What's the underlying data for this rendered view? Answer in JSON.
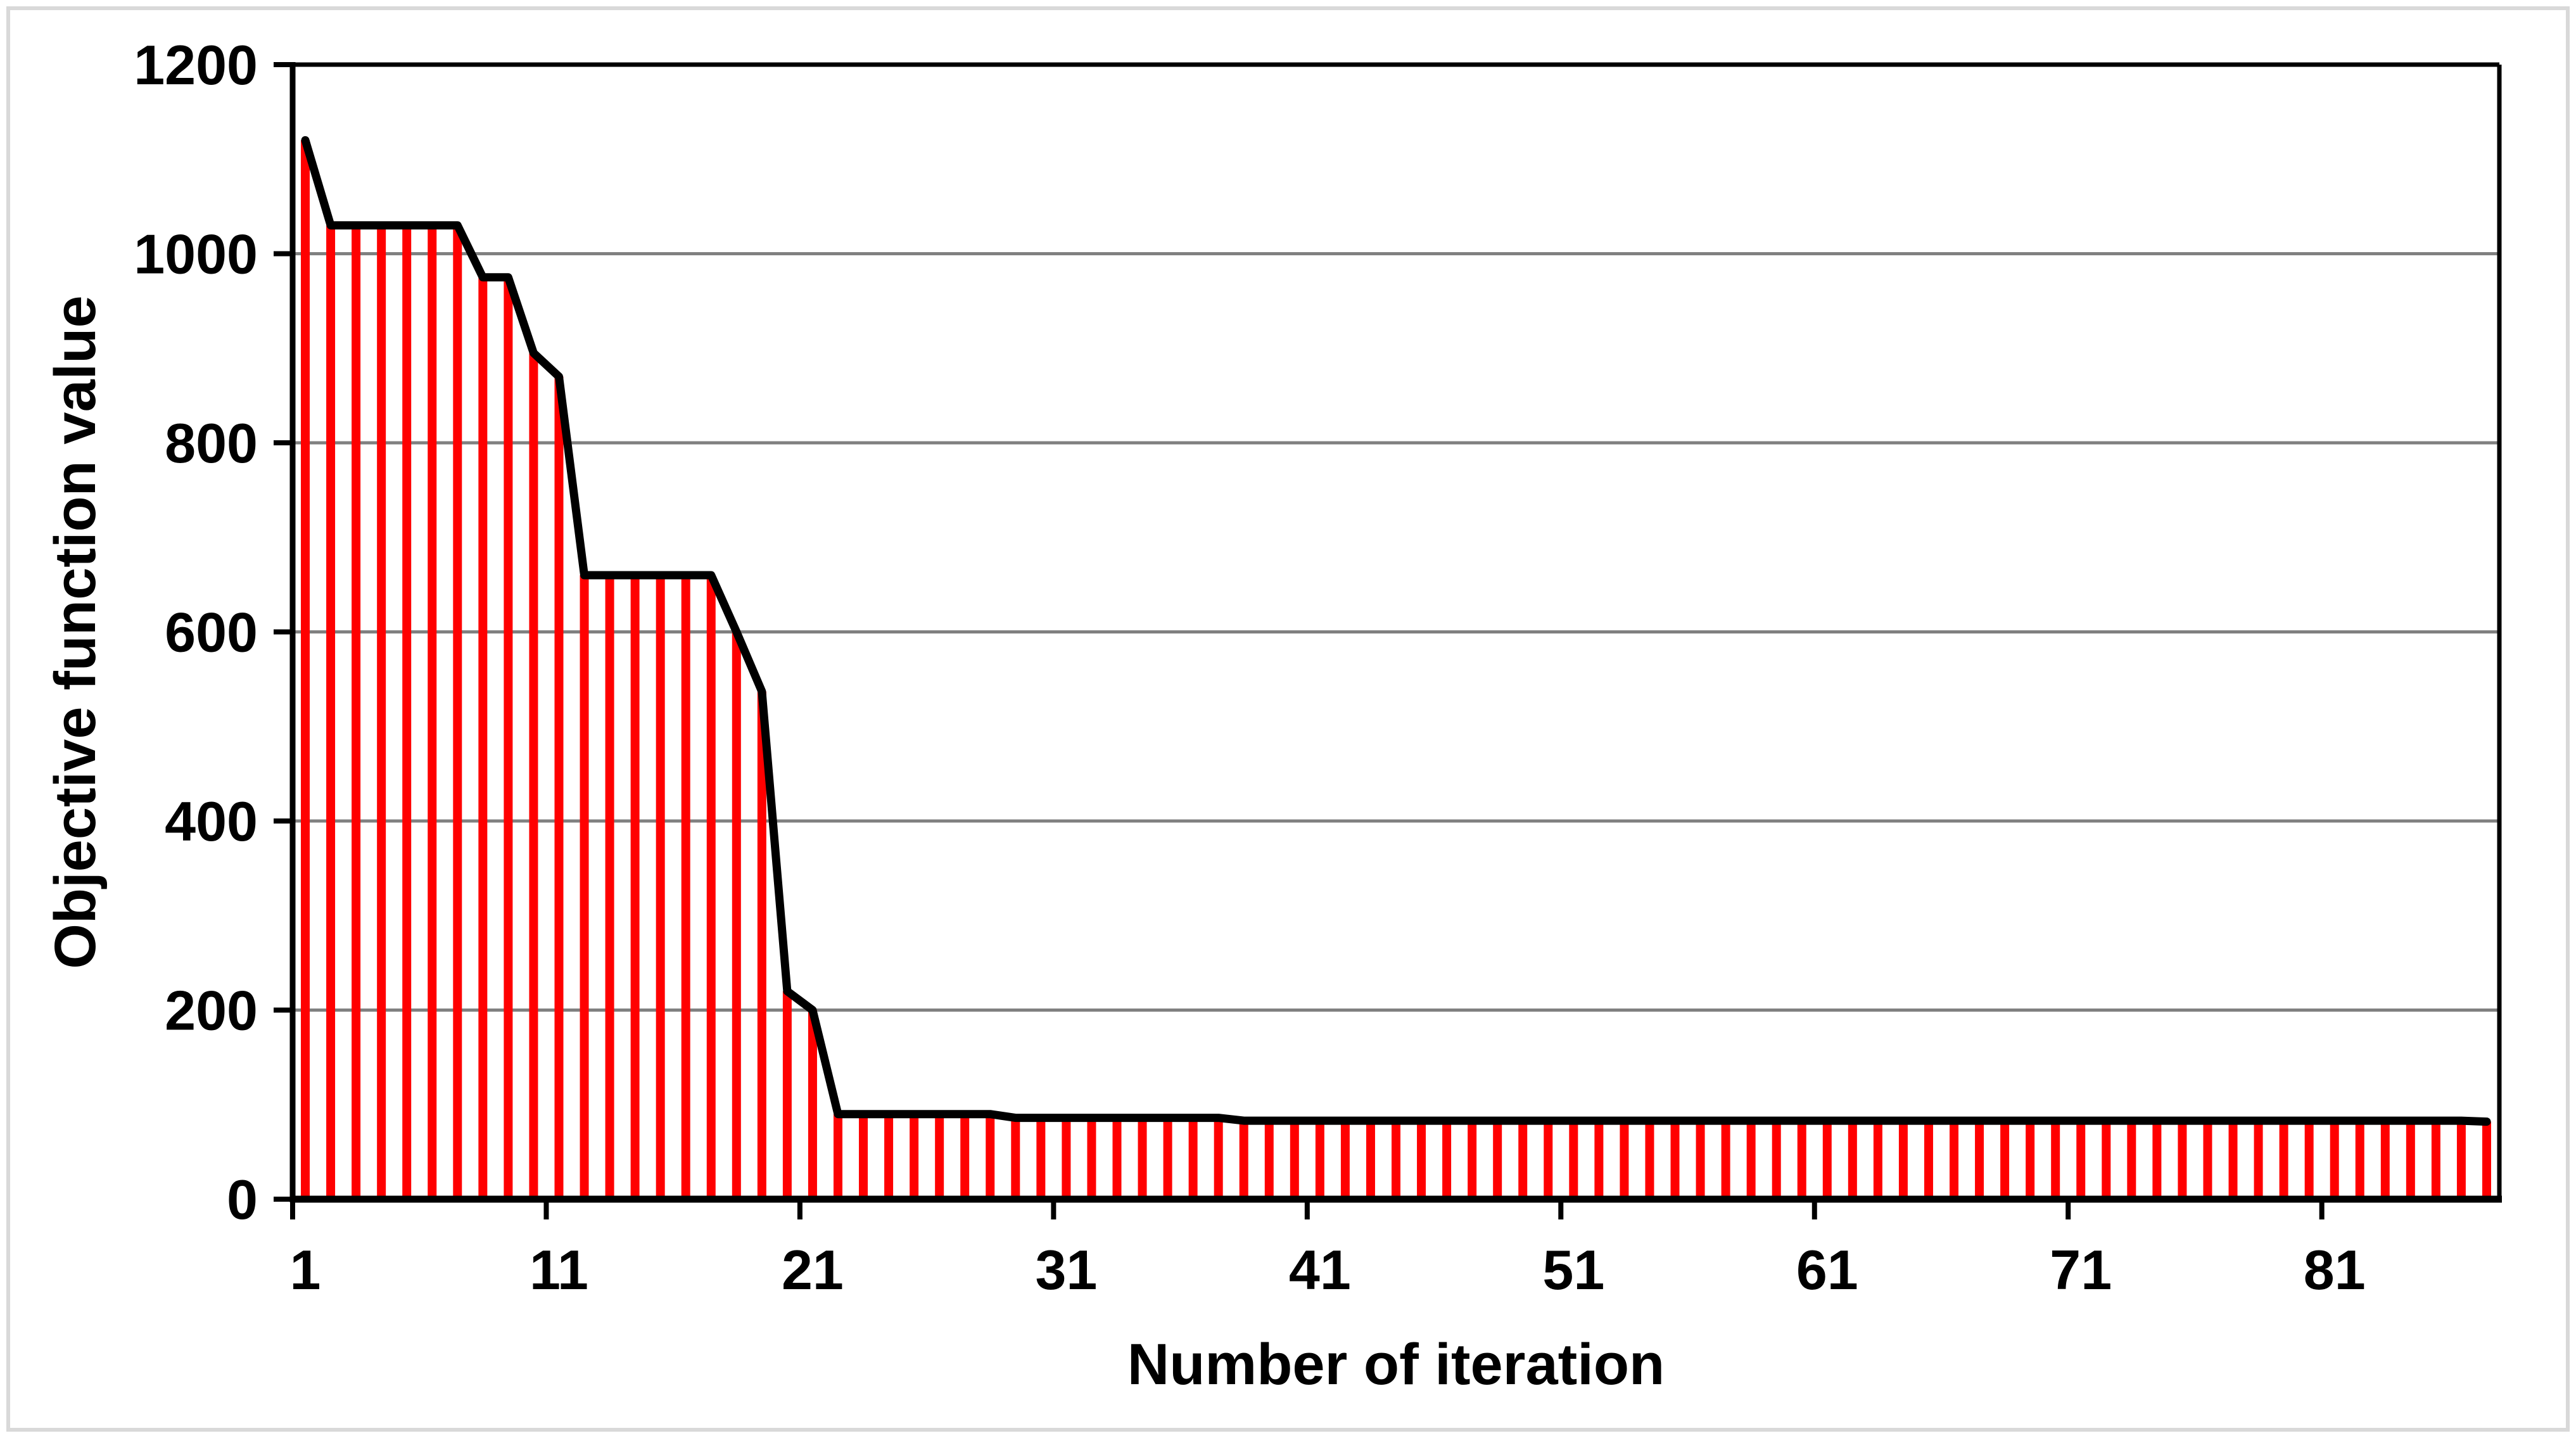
{
  "figure": {
    "background": "#ffffff",
    "border_color": "#d9d9d9"
  },
  "chart_data": {
    "type": "bar",
    "title": "",
    "xlabel": "Number of iteration",
    "ylabel": "Objective function value",
    "ylim": [
      0,
      1200
    ],
    "y_ticks": [
      0,
      200,
      400,
      600,
      800,
      1000,
      1200
    ],
    "x_tick_labels": [
      "1",
      "11",
      "21",
      "31",
      "41",
      "51",
      "61",
      "71",
      "81"
    ],
    "x_tick_step": 10,
    "n_points": 87,
    "grid": "horizontal-only",
    "legend": "none",
    "bar_color": "#ff0000",
    "line_color": "#000000",
    "gridline_color": "#808080",
    "axis_color": "#000000",
    "values": [
      1120,
      1030,
      1030,
      1030,
      1030,
      1030,
      1030,
      975,
      975,
      895,
      870,
      660,
      660,
      660,
      660,
      660,
      660,
      600,
      537,
      220,
      200,
      90,
      90,
      90,
      90,
      90,
      90,
      90,
      86,
      86,
      86,
      86,
      86,
      86,
      86,
      86,
      86,
      83,
      83,
      83,
      83,
      83,
      83,
      83,
      83,
      83,
      83,
      83,
      83,
      83,
      83,
      83,
      83,
      83,
      83,
      83,
      83,
      83,
      83,
      83,
      83,
      83,
      83,
      83,
      83,
      83,
      83,
      83,
      83,
      83,
      83,
      83,
      83,
      83,
      83,
      83,
      83,
      83,
      83,
      83,
      83,
      83,
      83,
      83,
      83,
      83,
      82
    ]
  }
}
